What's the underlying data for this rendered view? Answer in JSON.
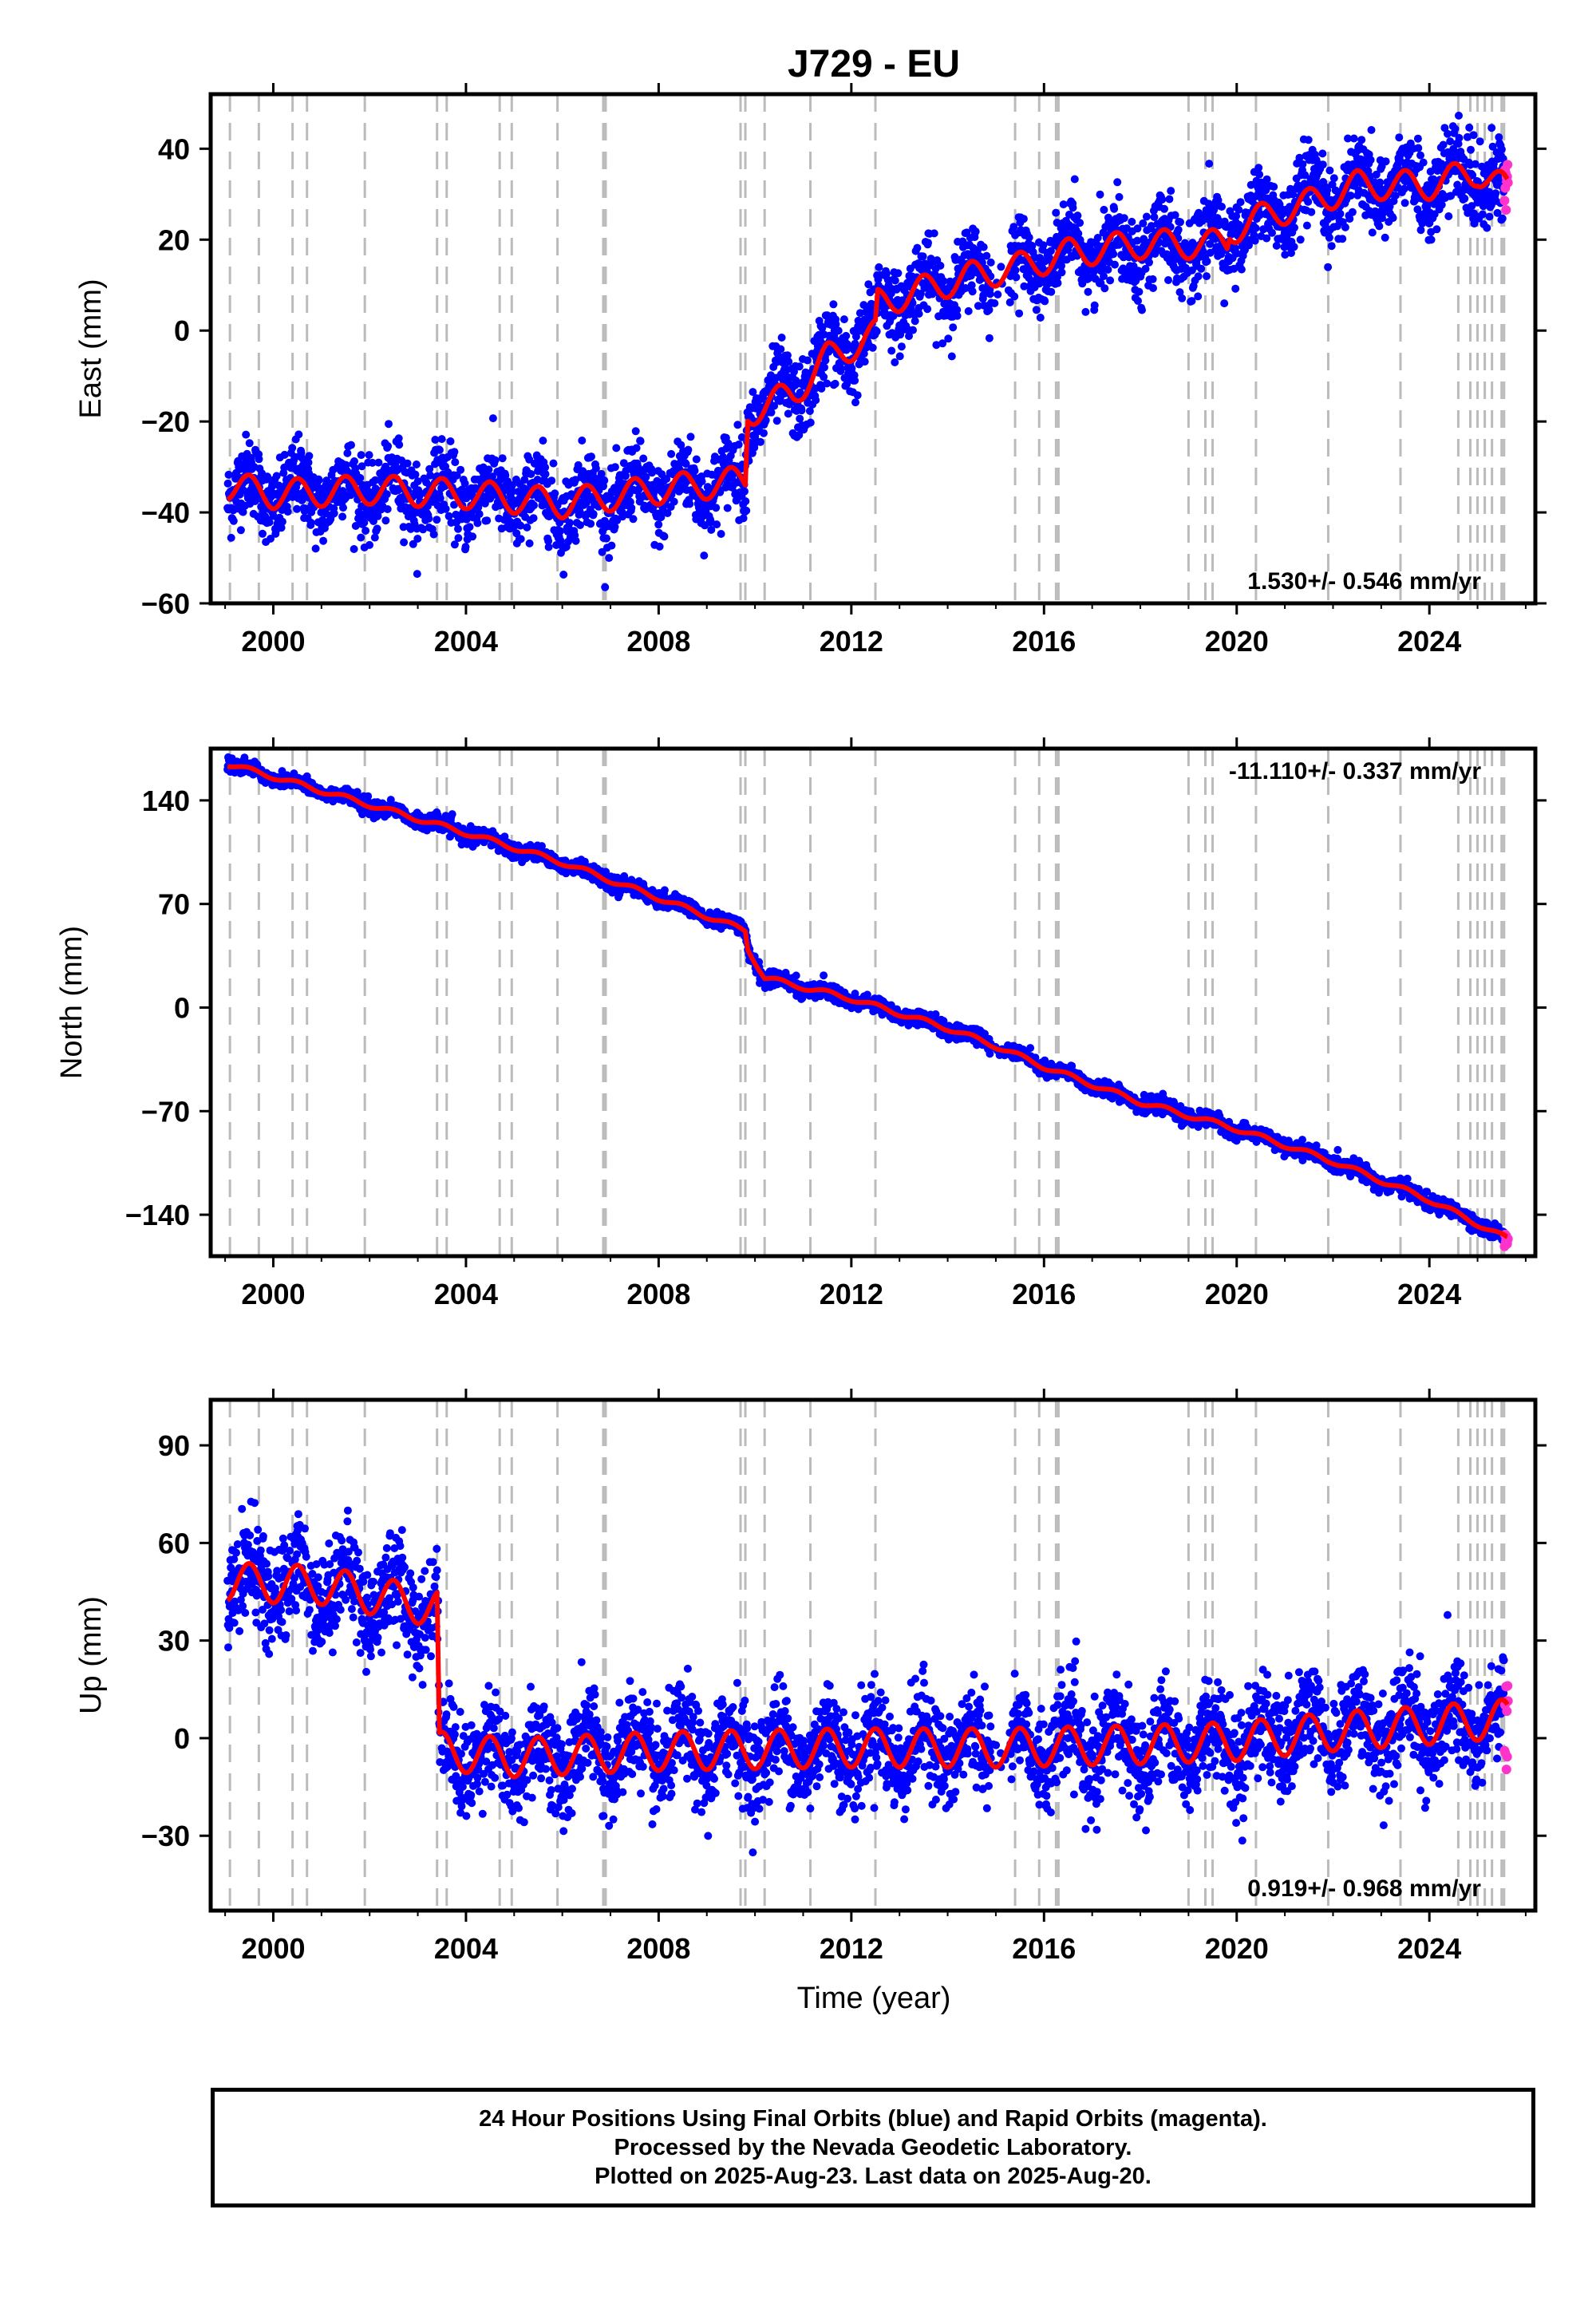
{
  "chart_data": {
    "title": "J729 - EU",
    "type": "scatter",
    "xlim": [
      1998.7,
      2026.2
    ],
    "x_ticks": [
      "2000",
      "2004",
      "2008",
      "2012",
      "2016",
      "2020",
      "2024"
    ],
    "x_tick_values": [
      2000,
      2004,
      2008,
      2012,
      2016,
      2020,
      2024
    ],
    "xlabel": "Time (year)",
    "step_lines_years": [
      1999.1,
      1999.7,
      2000.4,
      2000.7,
      2001.9,
      2003.4,
      2003.6,
      2004.7,
      2004.95,
      2005.9,
      2006.85,
      2006.9,
      2009.7,
      2009.8,
      2010.2,
      2011.15,
      2012.5,
      2015.4,
      2015.9,
      2016.25,
      2016.3,
      2019.0,
      2019.35,
      2019.5,
      2020.4,
      2021.9,
      2023.4,
      2024.6,
      2024.85,
      2025.0,
      2025.15,
      2025.3,
      2025.5,
      2025.55
    ],
    "colors": {
      "final_orbits": "#0000ff",
      "rapid_orbits": "#ff33cc",
      "model": "#ff0000",
      "step_lines": "#bbbbbb",
      "frame": "#000000"
    },
    "panels": [
      {
        "name": "east",
        "ylabel": "East (mm)",
        "ylim": [
          -60,
          52
        ],
        "y_ticks": [
          "40",
          "20",
          "0",
          "−20",
          "−40",
          "−60"
        ],
        "y_tick_values": [
          40,
          20,
          0,
          -20,
          -40,
          -60
        ],
        "rate": "1.530+/- 0.546 mm/yr",
        "rate_position": "bottom-right",
        "trend_knots": [
          [
            1999.0,
            -34
          ],
          [
            2000.0,
            -36
          ],
          [
            2002.0,
            -35
          ],
          [
            2004.0,
            -36
          ],
          [
            2006.0,
            -38
          ],
          [
            2008.0,
            -35
          ],
          [
            2009.8,
            -33
          ],
          [
            2009.85,
            -18
          ],
          [
            2010.8,
            -14
          ],
          [
            2011.5,
            -6
          ],
          [
            2012.5,
            -1
          ],
          [
            2012.55,
            6
          ],
          [
            2013.5,
            9
          ],
          [
            2014.5,
            12
          ],
          [
            2015.5,
            14
          ],
          [
            2016.5,
            17
          ],
          [
            2018.0,
            19
          ],
          [
            2019.8,
            19
          ],
          [
            2019.85,
            22
          ],
          [
            2020.8,
            26
          ],
          [
            2021.5,
            28
          ],
          [
            2022.5,
            32
          ],
          [
            2024.0,
            32
          ],
          [
            2025.0,
            35
          ],
          [
            2025.6,
            31
          ]
        ],
        "seasonal_amplitude": 3.8,
        "scatter_noise": 4.2,
        "model_end": [
          2025.62,
          23
        ]
      },
      {
        "name": "north",
        "ylabel": "North (mm)",
        "ylim": [
          -168,
          175
        ],
        "y_ticks": [
          "140",
          "70",
          "0",
          "−70",
          "−140"
        ],
        "y_tick_values": [
          140,
          70,
          0,
          -70,
          -140
        ],
        "rate": "-11.110+/- 0.337 mm/yr",
        "rate_position": "top-right",
        "trend_knots": [
          [
            1999.0,
            165
          ],
          [
            2000.0,
            156
          ],
          [
            2002.0,
            137
          ],
          [
            2004.0,
            118
          ],
          [
            2006.0,
            98
          ],
          [
            2008.0,
            74
          ],
          [
            2009.8,
            52
          ],
          [
            2009.85,
            40
          ],
          [
            2010.2,
            20
          ],
          [
            2012.0,
            6
          ],
          [
            2014.0,
            -14
          ],
          [
            2015.0,
            -26
          ],
          [
            2016.0,
            -40
          ],
          [
            2018.0,
            -64
          ],
          [
            2020.0,
            -82
          ],
          [
            2022.0,
            -104
          ],
          [
            2024.0,
            -130
          ],
          [
            2025.6,
            -156
          ]
        ],
        "seasonal_amplitude": 2.0,
        "scatter_noise": 2.5,
        "model_end": [
          2025.62,
          -157
        ]
      },
      {
        "name": "up",
        "ylabel": "Up (mm)",
        "ylim": [
          -53,
          104
        ],
        "y_ticks": [
          "90",
          "60",
          "30",
          "0",
          "−30"
        ],
        "y_tick_values": [
          90,
          60,
          30,
          0,
          -30
        ],
        "rate": "0.919+/- 0.968 mm/yr",
        "rate_position": "bottom-right",
        "trend_knots": [
          [
            1999.0,
            48
          ],
          [
            2001.0,
            47
          ],
          [
            2003.4,
            40
          ],
          [
            2003.45,
            -4
          ],
          [
            2005.0,
            -6
          ],
          [
            2008.0,
            -4
          ],
          [
            2012.0,
            -3
          ],
          [
            2015.0,
            -3
          ],
          [
            2018.0,
            -2
          ],
          [
            2020.0,
            -1
          ],
          [
            2022.0,
            2
          ],
          [
            2024.0,
            4
          ],
          [
            2025.6,
            6
          ]
        ],
        "seasonal_amplitude": 7.0,
        "scatter_noise": 7.5,
        "model_end": [
          2025.62,
          8
        ]
      }
    ]
  },
  "caption": {
    "lines": [
      "24 Hour Positions Using Final Orbits (blue) and Rapid Orbits (magenta).",
      "Processed by the Nevada Geodetic Laboratory.",
      "Plotted on 2025-Aug-23. Last data on 2025-Aug-20."
    ]
  }
}
